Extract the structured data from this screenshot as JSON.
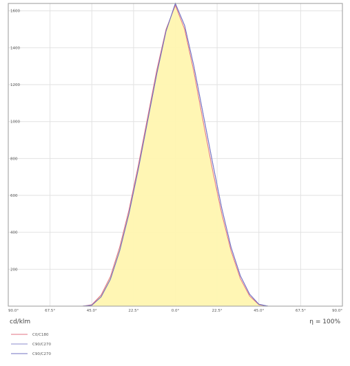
{
  "chart_data": {
    "type": "area",
    "x_ticks": [
      "90.0°",
      "67.5°",
      "45.0°",
      "22.5°",
      "0.0°",
      "22.5°",
      "45.0°",
      "67.5°",
      "90.0°"
    ],
    "x_range": [
      -90,
      90
    ],
    "y_ticks": [
      200,
      400,
      600,
      800,
      1000,
      1200,
      1400,
      1600
    ],
    "ylim": [
      0,
      1640
    ],
    "grid": true,
    "unit_label": "cd/klm",
    "efficiency_label": "η = 100%",
    "legend_position": "bottom-left",
    "series": [
      {
        "name": "C0/C180",
        "color": "#e07080",
        "fill": true,
        "x": [
          -90,
          -60,
          -50,
          -45,
          -40,
          -35,
          -30,
          -25,
          -20,
          -15,
          -10,
          -5,
          0,
          5,
          10,
          15,
          20,
          25,
          30,
          35,
          40,
          45,
          50,
          60,
          90
        ],
        "values": [
          0,
          0,
          0,
          8,
          60,
          160,
          320,
          520,
          760,
          1020,
          1280,
          1500,
          1630,
          1500,
          1270,
          1000,
          740,
          500,
          300,
          150,
          55,
          8,
          0,
          0,
          0
        ]
      },
      {
        "name": "C90/C270",
        "color": "#8888cc",
        "fill": false,
        "x": [
          -90,
          -60,
          -50,
          -45,
          -40,
          -35,
          -30,
          -25,
          -20,
          -15,
          -10,
          -5,
          0,
          5,
          10,
          15,
          20,
          25,
          30,
          35,
          40,
          45,
          50,
          60,
          90
        ],
        "values": [
          0,
          0,
          0,
          5,
          50,
          145,
          300,
          500,
          740,
          1000,
          1260,
          1490,
          1640,
          1520,
          1300,
          1040,
          780,
          530,
          320,
          165,
          65,
          10,
          0,
          0,
          0
        ]
      },
      {
        "name": "C90/C270",
        "color": "#7070c0",
        "fill": false,
        "x": [
          -90,
          -60,
          -50,
          -45,
          -40,
          -35,
          -30,
          -25,
          -20,
          -15,
          -10,
          -5,
          0,
          5,
          10,
          15,
          20,
          25,
          30,
          35,
          40,
          45,
          50,
          60,
          90
        ],
        "values": [
          0,
          0,
          0,
          5,
          50,
          145,
          300,
          500,
          740,
          1000,
          1260,
          1490,
          1640,
          1520,
          1300,
          1040,
          780,
          530,
          320,
          165,
          65,
          10,
          0,
          0,
          0
        ]
      }
    ]
  }
}
